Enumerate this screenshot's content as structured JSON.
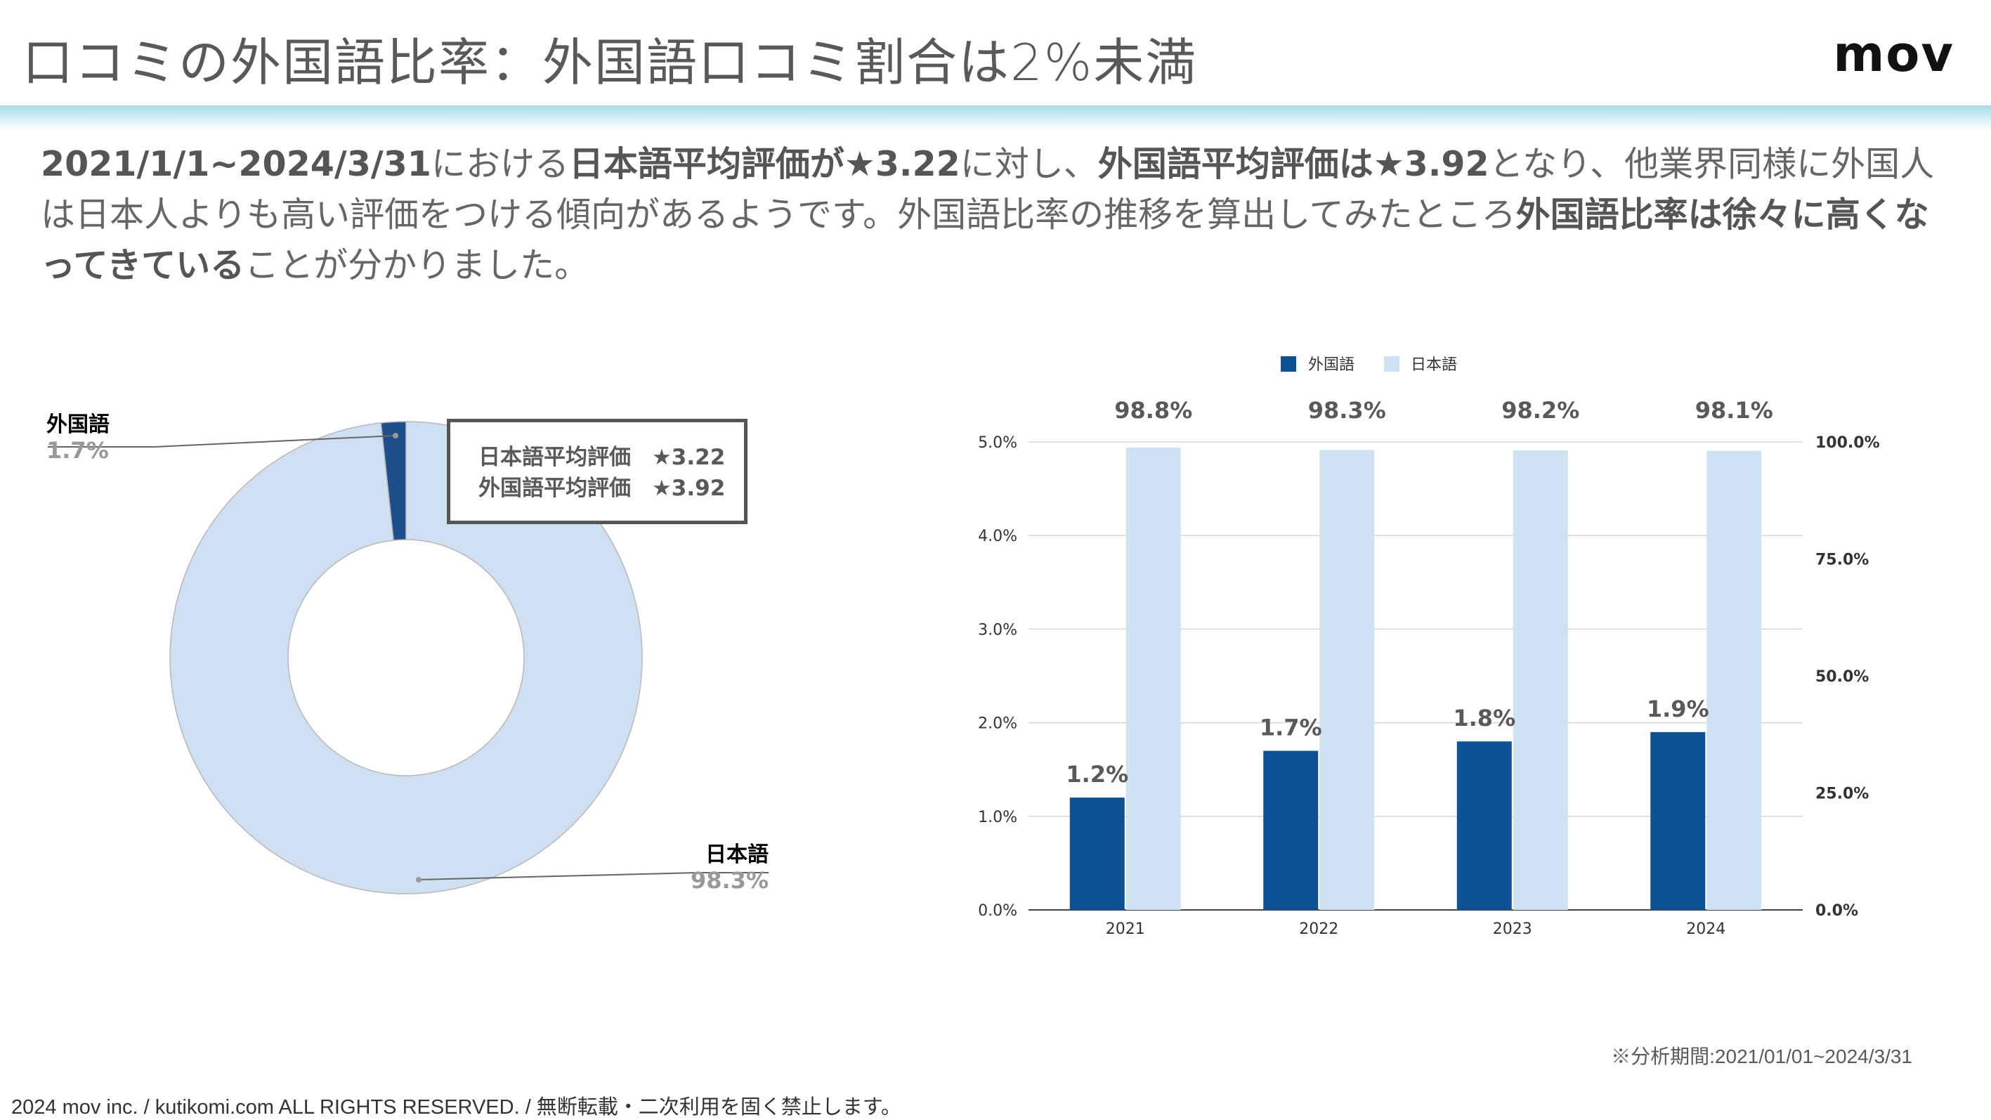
{
  "header": {
    "title": "口コミの外国語比率：外国語口コミ割合は2%未満",
    "logo": "mov",
    "accent_color": "#a6dbe9"
  },
  "summary": {
    "p1": "2021/1/1~2024/3/31",
    "p2": "における",
    "p3": "日本語平均評価が★3.22",
    "p4": "に対し、",
    "p5": "外国語平均評価は★3.92",
    "p6": "となり、他業界同様に外国人は日本人よりも高い評価をつける傾向があるようです。外国語比率の推移を算出してみたところ",
    "p7": "外国語比率は徐々に高くなってきている",
    "p8": "ことが分かりました。"
  },
  "rating_box": {
    "ja_label": "日本語平均評価",
    "ja_value": "★3.22",
    "fo_label": "外国語平均評価",
    "fo_value": "★3.92"
  },
  "footer": {
    "footnote": "※分析期間:2021/01/01~2024/3/31",
    "copyright": "2024 mov inc. / kutikomi.com ALL RIGHTS RESERVED. / 無断転載・二次利用を固く禁止します。"
  },
  "chart_data": [
    {
      "type": "pie",
      "variant": "donut",
      "slices": [
        {
          "name": "外国語",
          "value": 1.7,
          "label": "1.7%",
          "color": "#1f4e8c"
        },
        {
          "name": "日本語",
          "value": 98.3,
          "label": "98.3%",
          "color": "#cfe0f3"
        }
      ]
    },
    {
      "type": "bar",
      "categories": [
        "2021",
        "2022",
        "2023",
        "2024"
      ],
      "series": [
        {
          "name": "外国語",
          "values": [
            1.2,
            1.7,
            1.8,
            1.9
          ],
          "labels": [
            "1.2%",
            "1.7%",
            "1.8%",
            "1.9%"
          ],
          "axis": "left",
          "color": "#0d5295"
        },
        {
          "name": "日本語",
          "values": [
            98.8,
            98.3,
            98.2,
            98.1
          ],
          "labels": [
            "98.8%",
            "98.3%",
            "98.2%",
            "98.1%"
          ],
          "axis": "right",
          "color": "#cfe2f3"
        }
      ],
      "y_left": {
        "ylim": [
          0,
          5
        ],
        "ticks": [
          "0.0%",
          "1.0%",
          "2.0%",
          "3.0%",
          "4.0%",
          "5.0%"
        ]
      },
      "y_right": {
        "ylim": [
          0,
          100
        ],
        "ticks": [
          "0.0%",
          "25.0%",
          "50.0%",
          "75.0%",
          "100.0%"
        ]
      },
      "legend": "top",
      "grid": true
    }
  ]
}
